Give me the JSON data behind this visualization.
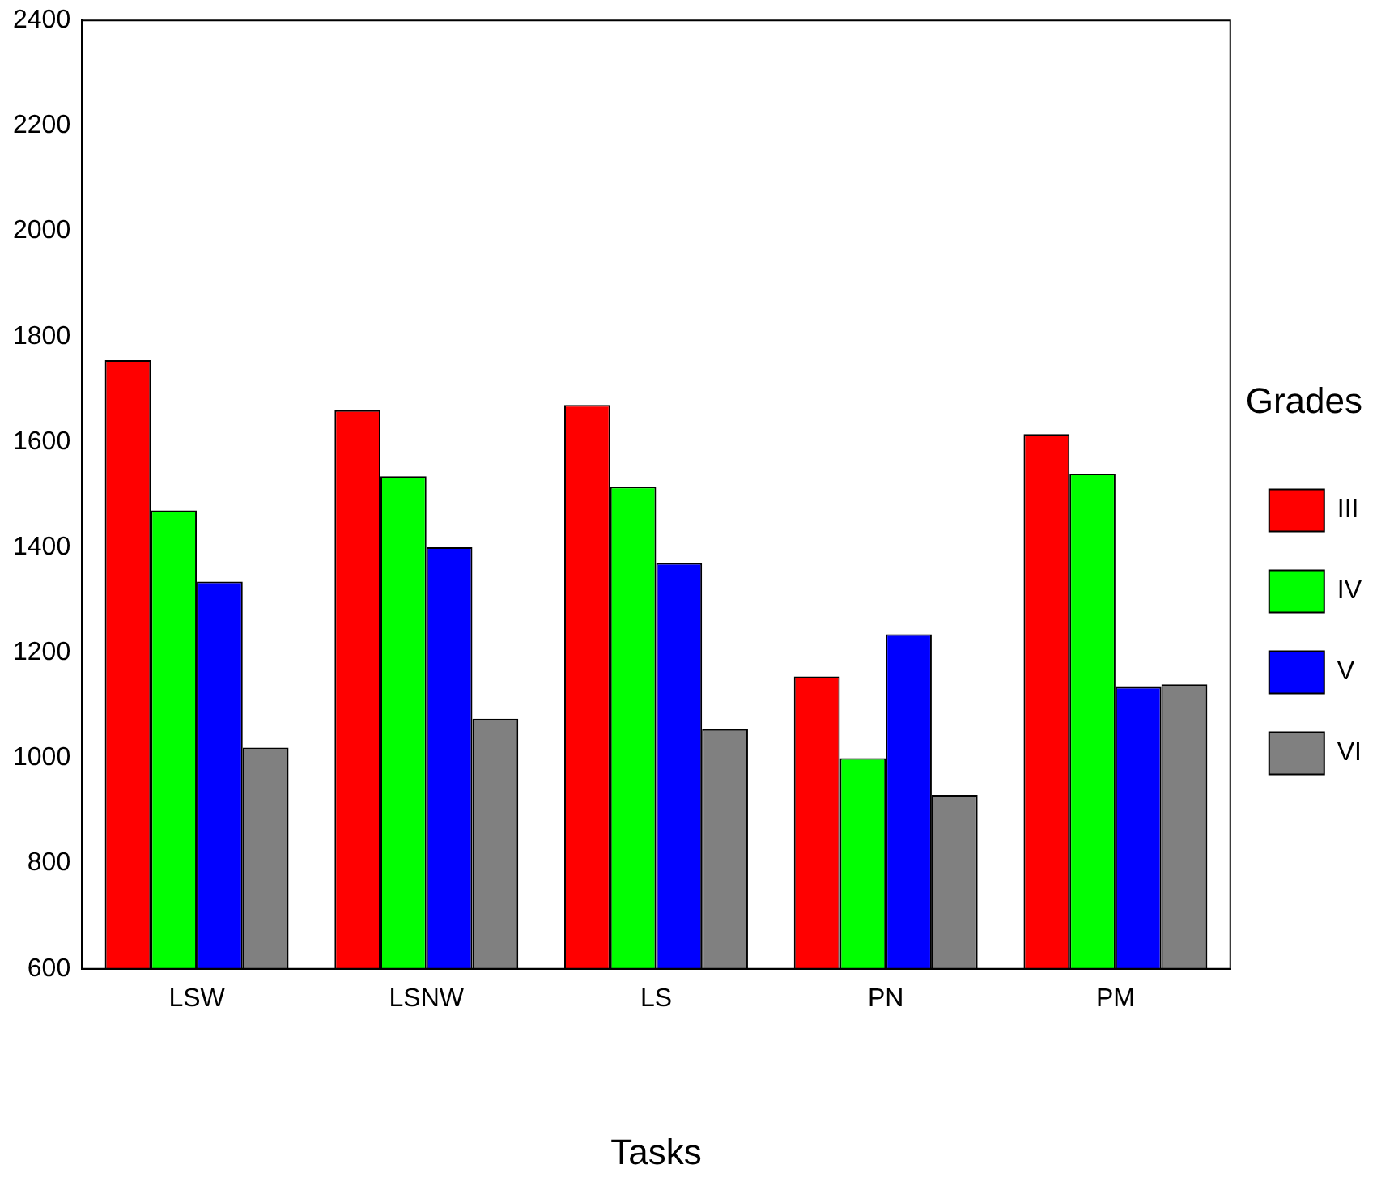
{
  "chart_data": {
    "type": "bar",
    "xlabel": "Tasks",
    "legend_title": "Grades",
    "categories": [
      "LSW",
      "LSNW",
      "LS",
      "PN",
      "PM"
    ],
    "series": [
      {
        "name": "III",
        "color": "#ff0000",
        "values": [
          1755,
          1660,
          1670,
          1155,
          1615
        ]
      },
      {
        "name": "IV",
        "color": "#00ff00",
        "values": [
          1470,
          1535,
          1515,
          1000,
          1540
        ]
      },
      {
        "name": "V",
        "color": "#0000ff",
        "values": [
          1335,
          1400,
          1370,
          1235,
          1135
        ]
      },
      {
        "name": "VI",
        "color": "#808080",
        "values": [
          1020,
          1075,
          1055,
          930,
          1140
        ]
      }
    ],
    "ylim": [
      600,
      2400
    ],
    "yticks": [
      600,
      800,
      1000,
      1200,
      1400,
      1600,
      1800,
      2000,
      2200,
      2400
    ],
    "grid": false,
    "legend": "right"
  }
}
